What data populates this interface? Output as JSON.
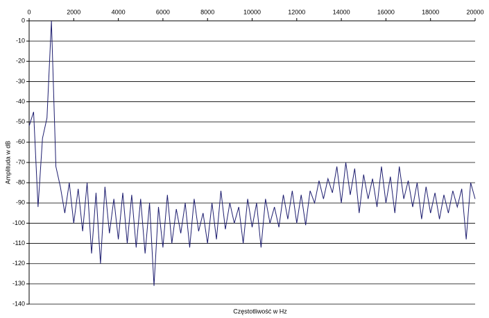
{
  "chart_data": {
    "type": "line",
    "x_label": "Częstotliwość w Hz",
    "y_label": "Amplituda w dB",
    "x": [
      0,
      200,
      400,
      600,
      800,
      1000,
      1200,
      1400,
      1600,
      1800,
      2000,
      2200,
      2400,
      2600,
      2800,
      3000,
      3200,
      3400,
      3600,
      3800,
      4000,
      4200,
      4400,
      4600,
      4800,
      5000,
      5200,
      5400,
      5600,
      5800,
      6000,
      6200,
      6400,
      6600,
      6800,
      7000,
      7200,
      7400,
      7600,
      7800,
      8000,
      8200,
      8400,
      8600,
      8800,
      9000,
      9200,
      9400,
      9600,
      9800,
      10000,
      10200,
      10400,
      10600,
      10800,
      11000,
      11200,
      11400,
      11600,
      11800,
      12000,
      12200,
      12400,
      12600,
      12800,
      13000,
      13200,
      13400,
      13600,
      13800,
      14000,
      14200,
      14400,
      14600,
      14800,
      15000,
      15200,
      15400,
      15600,
      15800,
      16000,
      16200,
      16400,
      16600,
      16800,
      17000,
      17200,
      17400,
      17600,
      17800,
      18000,
      18200,
      18400,
      18600,
      18800,
      19000,
      19200,
      19400,
      19600,
      19800,
      20000
    ],
    "series": [
      {
        "color": "#1c1c6e",
        "values": [
          -52,
          -45,
          -92,
          -58,
          -48,
          0,
          -72,
          -82,
          -95,
          -80,
          -100,
          -83,
          -104,
          -80,
          -115,
          -85,
          -120,
          -82,
          -105,
          -88,
          -108,
          -85,
          -110,
          -86,
          -112,
          -88,
          -115,
          -90,
          -131,
          -92,
          -112,
          -86,
          -110,
          -93,
          -105,
          -90,
          -112,
          -88,
          -104,
          -95,
          -110,
          -90,
          -108,
          -84,
          -103,
          -90,
          -100,
          -92,
          -110,
          -88,
          -102,
          -90,
          -112,
          -88,
          -100,
          -92,
          -102,
          -86,
          -98,
          -84,
          -100,
          -86,
          -101,
          -84,
          -90,
          -79,
          -88,
          -78,
          -85,
          -72,
          -90,
          -70,
          -86,
          -73,
          -95,
          -76,
          -88,
          -78,
          -92,
          -72,
          -90,
          -77,
          -95,
          -72,
          -88,
          -79,
          -92,
          -80,
          -98,
          -82,
          -95,
          -85,
          -98,
          -86,
          -95,
          -84,
          -92,
          -83,
          -108,
          -80,
          -88
        ]
      }
    ],
    "xlim": [
      0,
      20000
    ],
    "xticks": [
      0,
      2000,
      4000,
      6000,
      8000,
      10000,
      12000,
      14000,
      16000,
      18000,
      20000
    ],
    "ylim": [
      -140,
      0
    ],
    "yticks": [
      0,
      -10,
      -20,
      -30,
      -40,
      -50,
      -60,
      -70,
      -80,
      -90,
      -100,
      -110,
      -120,
      -130,
      -140
    ],
    "grid": true
  }
}
